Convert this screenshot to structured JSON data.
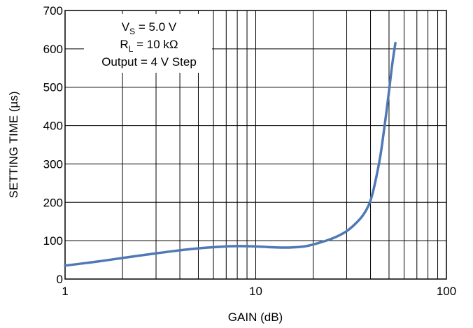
{
  "chart_data": {
    "type": "line",
    "x_scale": "log",
    "xlabel": "GAIN (dB)",
    "ylabel": "SETTING TIME (µs)",
    "xlim": [
      1,
      100
    ],
    "ylim": [
      0,
      700
    ],
    "x_tick_labels": [
      "1",
      "10",
      "100"
    ],
    "x_tick_values": [
      1,
      10,
      100
    ],
    "y_ticks": [
      0,
      100,
      200,
      300,
      400,
      500,
      600,
      700
    ],
    "grid": true,
    "series_color": "#4f79b5",
    "annotations": {
      "line1_main": "V",
      "line1_sub": "S",
      "line1_rest": " = 5.0 V",
      "line2_main": "R",
      "line2_sub": "L",
      "line2_rest": " = 10 kΩ",
      "line3": "Output = 4 V Step"
    },
    "series": [
      {
        "x": [
          1,
          1.5,
          2,
          3,
          4,
          5,
          6,
          7,
          8,
          10,
          12,
          15,
          18,
          20,
          25,
          30,
          35,
          38,
          40,
          42,
          45,
          48,
          50,
          52,
          54
        ],
        "y": [
          35,
          46,
          55,
          67,
          75,
          80,
          83,
          85,
          86,
          85,
          83,
          82,
          85,
          90,
          105,
          125,
          155,
          180,
          205,
          245,
          320,
          420,
          490,
          560,
          615
        ]
      }
    ]
  }
}
